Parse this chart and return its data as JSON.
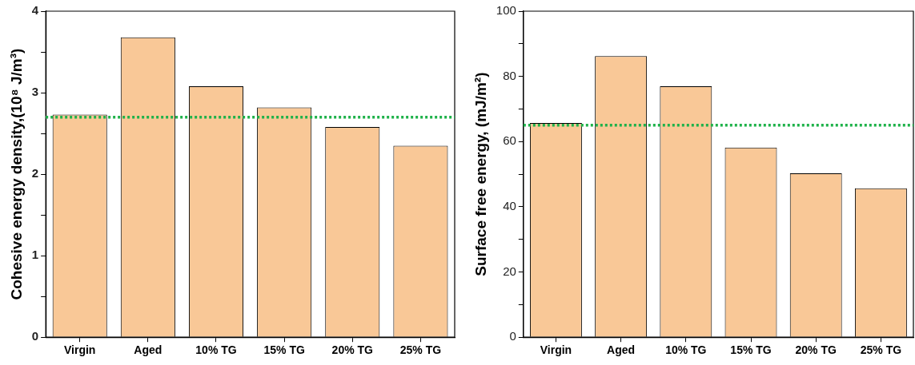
{
  "chart_data": [
    {
      "type": "bar",
      "ylabel": "Cohesive energy density,(10⁸ J/m³)",
      "categories": [
        "Virgin",
        "Aged",
        "10% TG",
        "15% TG",
        "20% TG",
        "25% TG"
      ],
      "values": [
        2.73,
        3.68,
        3.08,
        2.82,
        2.58,
        2.35
      ],
      "color": "#f9c897",
      "ylim": [
        0,
        4
      ],
      "yticks": [
        0,
        {
          "value": 0.5,
          "label": null
        },
        1,
        {
          "value": 1.5,
          "label": null
        },
        2,
        {
          "value": 2.5,
          "label": null
        },
        3,
        {
          "value": 3.5,
          "label": null
        },
        4
      ],
      "grid": false,
      "legend": false,
      "ref_lines": [
        {
          "axis": "y",
          "value": 2.7,
          "color": "#1fb24a",
          "line_style": "dotted"
        }
      ]
    },
    {
      "type": "bar",
      "ylabel": "Surface free energy, (mJ/m²)",
      "categories": [
        "Virgin",
        "Aged",
        "10% TG",
        "15% TG",
        "20% TG",
        "25% TG"
      ],
      "values": [
        65.7,
        86.2,
        77.0,
        58.2,
        50.3,
        45.7
      ],
      "color": "#f9c897",
      "ylim": [
        0,
        100
      ],
      "yticks": [
        0,
        {
          "value": 10,
          "label": null
        },
        20,
        {
          "value": 30,
          "label": null
        },
        40,
        {
          "value": 50,
          "label": null
        },
        60,
        {
          "value": 70,
          "label": null
        },
        80,
        {
          "value": 90,
          "label": null
        },
        100
      ],
      "grid": false,
      "legend": false,
      "ref_lines": [
        {
          "axis": "y",
          "value": 65,
          "color": "#1fb24a",
          "line_style": "dotted"
        }
      ]
    }
  ]
}
